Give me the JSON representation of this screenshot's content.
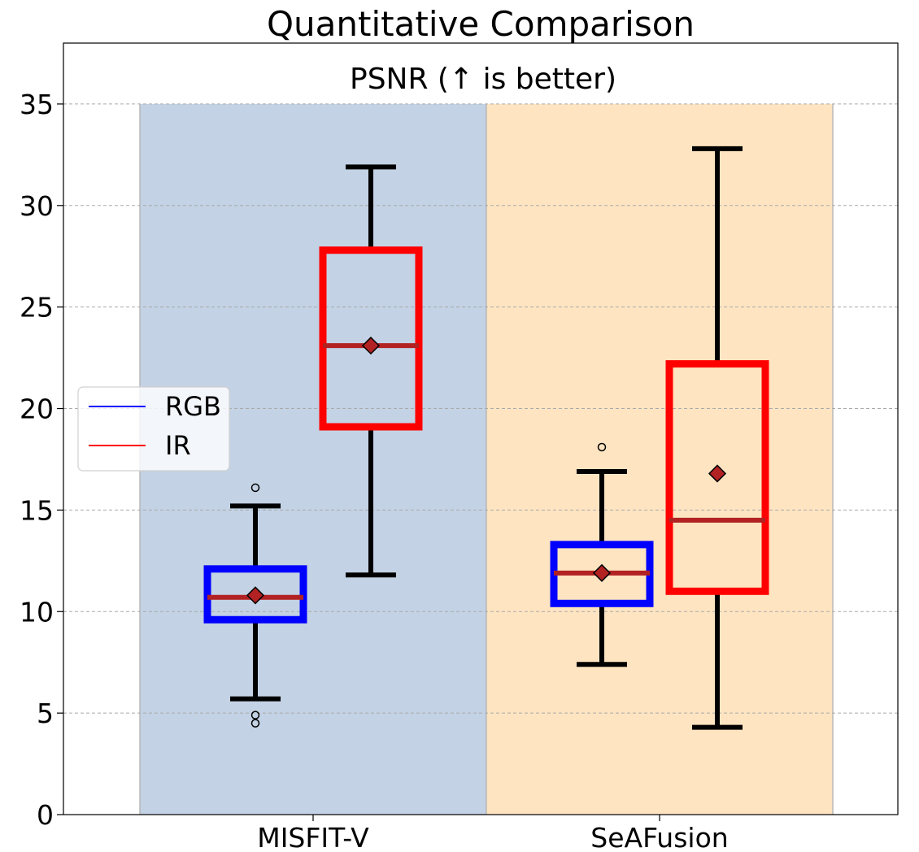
{
  "chart_data": {
    "type": "box",
    "title": "Quantitative Comparison",
    "subtitle": "PSNR (↑ is better)",
    "xlabel": "",
    "ylabel": "",
    "ylim": [
      0,
      38
    ],
    "yticks": [
      0,
      5,
      10,
      15,
      20,
      25,
      30,
      35
    ],
    "grid": "horizontal-dashed",
    "legend_position": "center-left",
    "categories": [
      "MISFIT-V",
      "SeAFusion"
    ],
    "category_backgrounds": [
      "#c3d2e4",
      "#fee4c1"
    ],
    "band_top": 35,
    "colors": {
      "RGB": "#0000ff",
      "IR": "#ff0000",
      "median": "#b22222",
      "whisker": "#000000"
    },
    "series": [
      {
        "name": "RGB",
        "boxes": [
          {
            "category": "MISFIT-V",
            "whisker_low": 5.7,
            "q1": 9.6,
            "median": 10.7,
            "mean": 10.8,
            "q3": 12.1,
            "whisker_high": 15.2,
            "outliers": [
              16.1,
              4.9,
              4.5
            ]
          },
          {
            "category": "SeAFusion",
            "whisker_low": 7.4,
            "q1": 10.4,
            "median": 11.9,
            "mean": 11.9,
            "q3": 13.3,
            "whisker_high": 16.9,
            "outliers": [
              18.1
            ]
          }
        ]
      },
      {
        "name": "IR",
        "boxes": [
          {
            "category": "MISFIT-V",
            "whisker_low": 11.8,
            "q1": 19.1,
            "median": 23.1,
            "mean": 23.1,
            "q3": 27.8,
            "whisker_high": 31.9,
            "outliers": []
          },
          {
            "category": "SeAFusion",
            "whisker_low": 4.3,
            "q1": 11.0,
            "median": 14.5,
            "mean": 16.8,
            "q3": 22.2,
            "whisker_high": 32.8,
            "outliers": []
          }
        ]
      }
    ]
  }
}
